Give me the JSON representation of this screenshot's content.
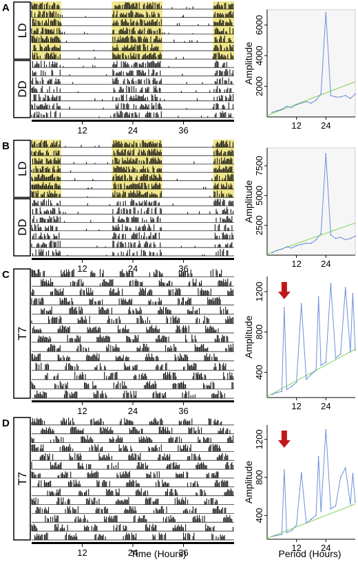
{
  "figure": {
    "x_axis_label_left": "Time (Hours)",
    "x_axis_label_right": "Period (Hours)",
    "colors": {
      "light_phase": "#f0e68c",
      "activity": "#111111",
      "periodogram": "#6a8ed8",
      "significance": "#8fd86a",
      "arrow": "#c0181a"
    }
  },
  "panels": [
    {
      "letter": "A",
      "actogram": {
        "conditions": [
          {
            "label": "LD",
            "days": 7
          },
          {
            "label": "DD",
            "days": 7
          }
        ],
        "x_ticks": [
          "12",
          "24",
          "36"
        ],
        "light_phase": "yes",
        "activity_period_hours": 24
      },
      "periodogram": {
        "ylabel": "Amplitude",
        "y_ticks": [
          "2000",
          "4000",
          "6000"
        ],
        "x_ticks": [
          "12",
          "24"
        ],
        "arrow": false
      }
    },
    {
      "letter": "B",
      "actogram": {
        "conditions": [
          {
            "label": "LD",
            "days": 7
          },
          {
            "label": "DD",
            "days": 7
          }
        ],
        "x_ticks": [
          "12",
          "24",
          "36"
        ],
        "light_phase": "yes",
        "activity_period_hours": 24
      },
      "periodogram": {
        "ylabel": "Amplitude",
        "y_ticks": [
          "2500",
          "5000",
          "7500"
        ],
        "x_ticks": [
          "12",
          "24"
        ],
        "arrow": false
      }
    },
    {
      "letter": "C",
      "actogram": {
        "conditions": [
          {
            "label": "T7",
            "days": 14
          }
        ],
        "x_ticks": [
          "12",
          "24",
          "36"
        ],
        "light_phase": "no",
        "activity_period_hours": 7
      },
      "periodogram": {
        "ylabel": "Amplitude",
        "y_ticks": [
          "400",
          "800",
          "1200"
        ],
        "x_ticks": [
          "12",
          "24"
        ],
        "arrow": true
      }
    },
    {
      "letter": "D",
      "actogram": {
        "conditions": [
          {
            "label": "T7",
            "days": 14
          }
        ],
        "x_ticks": [
          "12",
          "24",
          "36"
        ],
        "light_phase": "no",
        "activity_period_hours": 7
      },
      "periodogram": {
        "ylabel": "Amplitude",
        "y_ticks": [
          "400",
          "800",
          "1200"
        ],
        "x_ticks": [
          "12",
          "24"
        ],
        "arrow": true
      }
    }
  ],
  "chart_data": [
    {
      "type": "line",
      "panel": "A",
      "title": "",
      "xlabel": "",
      "ylabel": "Amplitude",
      "xlim": [
        0,
        36
      ],
      "ylim": [
        0,
        7000
      ],
      "series": [
        {
          "x": [
            2,
            4,
            6,
            8,
            10,
            12,
            14,
            16,
            18,
            20,
            22,
            24,
            26,
            28,
            30,
            32,
            34,
            36
          ],
          "values": [
            300,
            400,
            500,
            700,
            600,
            800,
            900,
            1000,
            900,
            1100,
            1500,
            6800,
            1400,
            1300,
            1300,
            1400,
            1200,
            1500
          ]
        },
        {
          "x": [
            0,
            36
          ],
          "values": [
            100,
            2300
          ]
        }
      ]
    },
    {
      "type": "line",
      "panel": "B",
      "title": "",
      "xlabel": "",
      "ylabel": "Amplitude",
      "xlim": [
        0,
        36
      ],
      "ylim": [
        0,
        9000
      ],
      "series": [
        {
          "x": [
            2,
            4,
            6,
            8,
            10,
            12,
            14,
            16,
            18,
            20,
            22,
            24,
            26,
            28,
            30,
            32,
            34,
            36
          ],
          "values": [
            200,
            400,
            500,
            700,
            600,
            800,
            900,
            1000,
            1000,
            1300,
            1800,
            8500,
            1700,
            1400,
            1500,
            1300,
            1400,
            1600
          ]
        },
        {
          "x": [
            0,
            36
          ],
          "values": [
            100,
            2700
          ]
        }
      ]
    },
    {
      "type": "line",
      "panel": "C",
      "title": "",
      "xlabel": "",
      "ylabel": "Amplitude",
      "xlim": [
        0,
        36
      ],
      "ylim": [
        150,
        1350
      ],
      "series": [
        {
          "x": [
            2,
            4,
            6,
            7,
            8,
            10,
            12,
            14,
            16,
            18,
            20,
            21,
            22,
            24,
            26,
            28,
            30,
            32,
            34,
            35,
            36
          ],
          "values": [
            180,
            200,
            210,
            1040,
            230,
            260,
            300,
            1080,
            330,
            380,
            420,
            1150,
            470,
            500,
            1280,
            540,
            580,
            1240,
            600,
            1180,
            620
          ]
        },
        {
          "x": [
            0,
            36
          ],
          "values": [
            160,
            630
          ]
        }
      ]
    },
    {
      "type": "line",
      "panel": "D",
      "title": "",
      "xlabel": "",
      "ylabel": "Amplitude",
      "xlim": [
        0,
        36
      ],
      "ylim": [
        150,
        1350
      ],
      "series": [
        {
          "x": [
            2,
            4,
            6,
            7,
            8,
            10,
            12,
            14,
            16,
            18,
            20,
            21,
            22,
            24,
            26,
            28,
            30,
            32,
            34,
            35,
            36
          ],
          "values": [
            180,
            190,
            200,
            880,
            220,
            240,
            300,
            850,
            320,
            360,
            400,
            1020,
            440,
            1300,
            470,
            500,
            800,
            900,
            520,
            840,
            540
          ]
        },
        {
          "x": [
            0,
            36
          ],
          "values": [
            160,
            520
          ]
        }
      ]
    }
  ]
}
